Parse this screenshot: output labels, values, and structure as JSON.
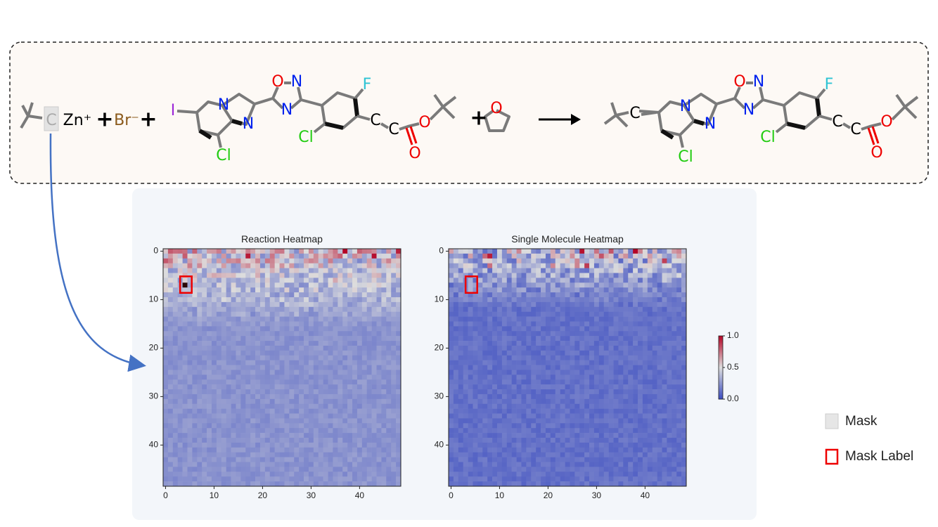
{
  "reaction": {
    "reactant_labels": [
      "C",
      "Zn⁺",
      "+",
      "Br⁻",
      "+",
      "I",
      "N",
      "N",
      "Cl",
      "O",
      "N",
      "N",
      "F",
      "Cl",
      "C",
      "C",
      "O",
      "O",
      "+",
      "O"
    ],
    "product_labels": [
      "C",
      "N",
      "N",
      "Cl",
      "O",
      "N",
      "N",
      "F",
      "Cl",
      "C",
      "C",
      "O",
      "O"
    ]
  },
  "heatmaps": [
    {
      "title": "Reaction Heatmap",
      "xlim": [
        -0.5,
        48.5
      ],
      "ylim": [
        -0.5,
        48.5
      ],
      "xticks": [
        0,
        10,
        20,
        30,
        40
      ],
      "yticks": [
        0,
        10,
        20,
        30,
        40
      ]
    },
    {
      "title": "Single Molecule Heatmap",
      "xlim": [
        -0.5,
        48.5
      ],
      "ylim": [
        -0.5,
        48.5
      ],
      "xticks": [
        0,
        10,
        20,
        30,
        40
      ],
      "yticks": [
        0,
        10,
        20,
        30,
        40
      ]
    }
  ],
  "colorbar": {
    "lim": [
      0,
      1
    ],
    "ticks": [
      {
        "value": 1,
        "label": "1.0"
      },
      {
        "value": 0.5,
        "label": "0.5"
      },
      {
        "value": 0,
        "label": "0.0"
      }
    ]
  },
  "legend": {
    "mask": "Mask",
    "mask_label": "Mask Label"
  }
}
